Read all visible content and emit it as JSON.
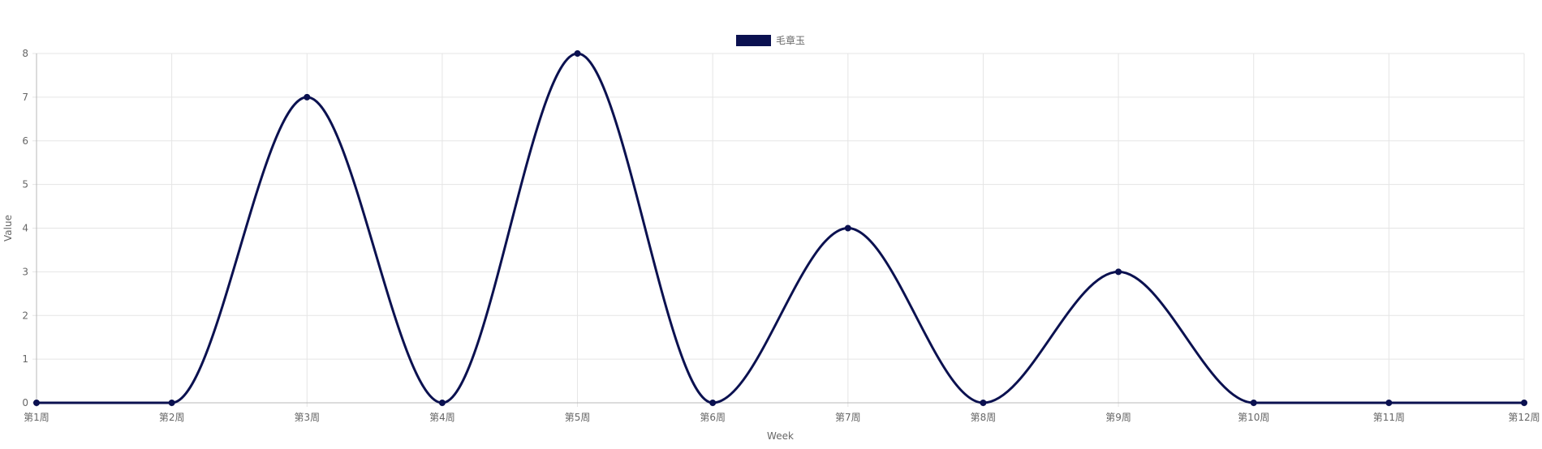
{
  "chart_data": {
    "type": "line",
    "categories": [
      "第1周",
      "第2周",
      "第3周",
      "第4周",
      "第5周",
      "第6周",
      "第7周",
      "第8周",
      "第9周",
      "第10周",
      "第11周",
      "第12周"
    ],
    "series": [
      {
        "name": "毛章玉",
        "values": [
          0,
          0,
          7,
          0,
          8,
          0,
          4,
          0,
          3,
          0,
          0,
          0
        ],
        "color": "#0b1150"
      }
    ],
    "xlabel": "Week",
    "ylabel": "Value",
    "ylim": [
      0,
      8
    ],
    "yticks": [
      0,
      1,
      2,
      3,
      4,
      5,
      6,
      7,
      8
    ],
    "grid": true,
    "legend": "top-center",
    "smooth": true
  }
}
